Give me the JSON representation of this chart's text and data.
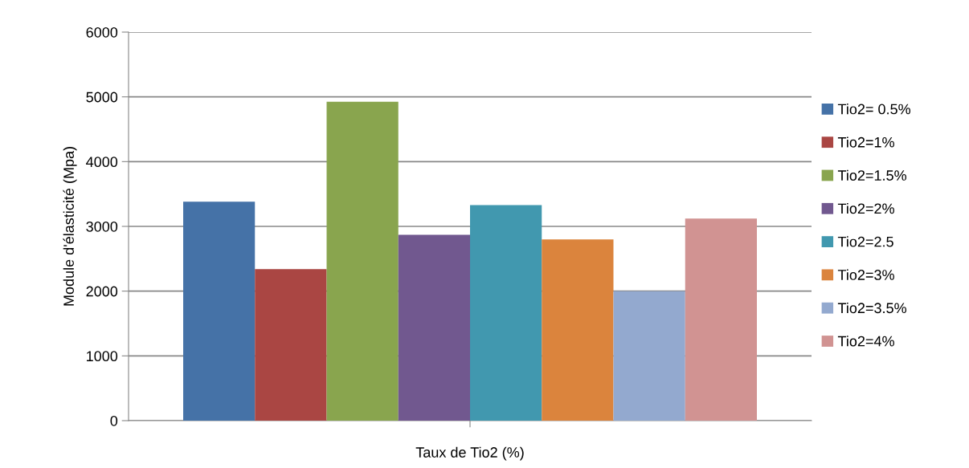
{
  "chart_data": {
    "type": "bar",
    "xlabel": "Taux de Tio2 (%)",
    "ylabel": "Module d'élasticité (Mpa)",
    "categories": [
      null
    ],
    "series": [
      {
        "name": "Tio2= 0.5%",
        "color": "#4572a7",
        "values": [
          3380
        ]
      },
      {
        "name": "Tio2=1%",
        "color": "#aa4643",
        "values": [
          2340
        ]
      },
      {
        "name": "Tio2=1.5%",
        "color": "#89a54e",
        "values": [
          4925
        ]
      },
      {
        "name": "Tio2=2%",
        "color": "#71588f",
        "values": [
          2870
        ]
      },
      {
        "name": "Tio2=2.5",
        "color": "#4198af",
        "values": [
          3330
        ]
      },
      {
        "name": "Tio2=3%",
        "color": "#db843d",
        "values": [
          2800
        ]
      },
      {
        "name": "Tio2=3.5%",
        "color": "#93a9cf",
        "values": [
          2000
        ]
      },
      {
        "name": "Tio2=4%",
        "color": "#d19392",
        "values": [
          3120
        ]
      }
    ],
    "ylim": [
      0,
      6000
    ],
    "yticks": [
      0,
      1000,
      2000,
      3000,
      4000,
      5000,
      6000
    ],
    "grid": "y",
    "legend": "right"
  }
}
